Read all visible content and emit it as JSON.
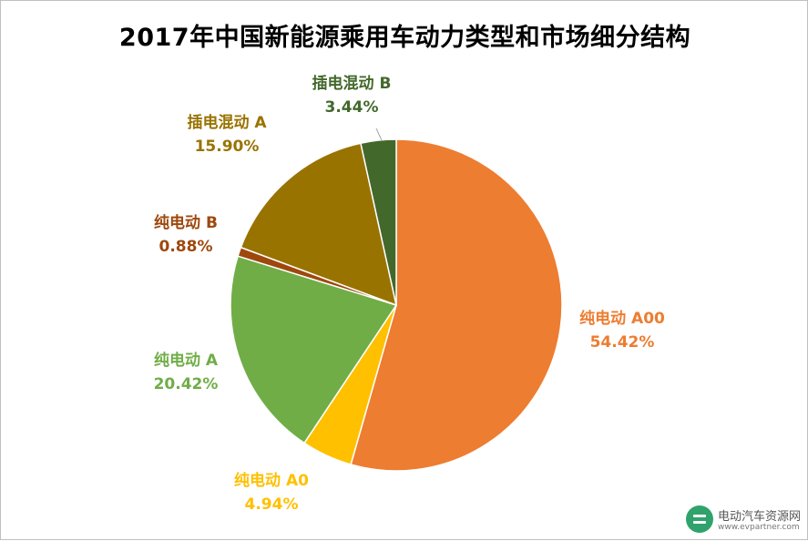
{
  "chart_data": {
    "type": "pie",
    "title": "2017年中国新能源乘用车动力类型和市场细分结构",
    "slices": [
      {
        "label": "纯电动 A00",
        "value": 54.42,
        "value_label": "54.42%",
        "color": "#ED7D31"
      },
      {
        "label": "纯电动 A0",
        "value": 4.94,
        "value_label": "4.94%",
        "color": "#FFC000"
      },
      {
        "label": "纯电动 A",
        "value": 20.42,
        "value_label": "20.42%",
        "color": "#70AD47"
      },
      {
        "label": "纯电动 B",
        "value": 0.88,
        "value_label": "0.88%",
        "color": "#9E480E"
      },
      {
        "label": "插电混动 A",
        "value": 15.9,
        "value_label": "15.90%",
        "color": "#997300"
      },
      {
        "label": "插电混动 B",
        "value": 3.44,
        "value_label": "3.44%",
        "color": "#43682B"
      }
    ],
    "start": "12 o'clock",
    "direction": "clockwise",
    "legend": "none"
  },
  "watermark": {
    "name": "电动汽车资源网",
    "url": "www.evpartner.com"
  }
}
